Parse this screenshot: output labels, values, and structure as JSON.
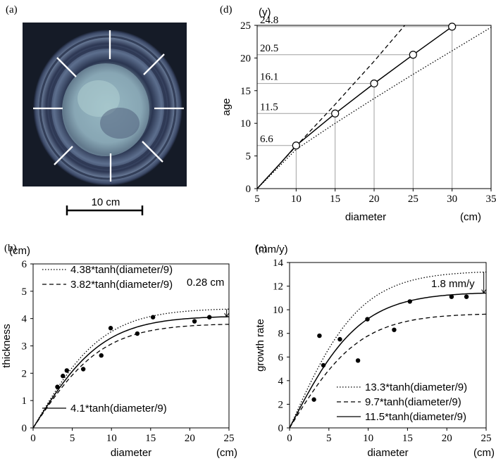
{
  "panels": {
    "a": {
      "label": "(a)",
      "scalebar": "10 cm"
    },
    "b": {
      "label": "(b)"
    },
    "c": {
      "label": "(c)"
    },
    "d": {
      "label": "(d)"
    }
  },
  "colors": {
    "ink": "#000000",
    "grid": "#a0a0a0",
    "disk_dark": "#1b2233",
    "disk_light": "#9fc0c8"
  },
  "chart_data": [
    {
      "id": "b",
      "type": "line",
      "xlabel": "diameter",
      "xunit": "(cm)",
      "ylabel": "thickness",
      "yunit": "(cm)",
      "xlim": [
        0,
        25
      ],
      "ylim": [
        0,
        6
      ],
      "xticks": [
        0,
        5,
        10,
        15,
        20,
        25
      ],
      "yticks": [
        0,
        1,
        2,
        3,
        4,
        5,
        6
      ],
      "curves": [
        {
          "name": "4.38*tanh(diameter/9)",
          "A": 4.38,
          "k": 9,
          "style": "dotted"
        },
        {
          "name": "3.82*tanh(diameter/9)",
          "A": 3.82,
          "k": 9,
          "style": "dashed"
        },
        {
          "name": "4.1*tanh(diameter/9)",
          "A": 4.1,
          "k": 9,
          "style": "solid"
        }
      ],
      "points": [
        [
          3.1,
          1.5
        ],
        [
          3.8,
          1.9
        ],
        [
          4.3,
          2.1
        ],
        [
          6.4,
          2.15
        ],
        [
          8.7,
          2.65
        ],
        [
          9.9,
          3.65
        ],
        [
          13.3,
          3.45
        ],
        [
          15.3,
          4.05
        ],
        [
          20.6,
          3.9
        ],
        [
          22.5,
          4.05
        ]
      ],
      "annotation": "0.28 cm"
    },
    {
      "id": "c",
      "type": "line",
      "xlabel": "diameter",
      "xunit": "(cm)",
      "ylabel": "growth rate",
      "yunit": "(mm/y)",
      "xlim": [
        0,
        25
      ],
      "ylim": [
        0,
        14
      ],
      "xticks": [
        0,
        5,
        10,
        15,
        20,
        25
      ],
      "yticks": [
        0,
        2,
        4,
        6,
        8,
        10,
        12,
        14
      ],
      "curves": [
        {
          "name": "13.3*tanh(diameter/9)",
          "A": 13.3,
          "k": 9,
          "style": "dotted"
        },
        {
          "name": "9.7*tanh(diameter/9)",
          "A": 9.7,
          "k": 9,
          "style": "dashed"
        },
        {
          "name": "11.5*tanh(diameter/9)",
          "A": 11.5,
          "k": 9,
          "style": "solid"
        }
      ],
      "points": [
        [
          3.1,
          2.4
        ],
        [
          3.8,
          7.8
        ],
        [
          4.3,
          5.3
        ],
        [
          6.4,
          7.5
        ],
        [
          8.7,
          5.7
        ],
        [
          9.9,
          9.2
        ],
        [
          13.3,
          8.3
        ],
        [
          15.3,
          10.7
        ],
        [
          20.6,
          11.1
        ],
        [
          22.5,
          11.1
        ]
      ],
      "annotation": "1.8 mm/y"
    },
    {
      "id": "d",
      "type": "line",
      "xlabel": "diameter",
      "xunit": "(cm)",
      "ylabel": "age",
      "yunit": "(y)",
      "xlim": [
        5,
        35
      ],
      "ylim": [
        0,
        25
      ],
      "xticks": [
        5,
        10,
        15,
        20,
        25,
        30,
        35
      ],
      "yticks": [
        0,
        5,
        10,
        15,
        20,
        25
      ],
      "curves": [
        {
          "style": "dashed",
          "x": [
            5,
            6,
            8,
            10,
            15,
            20,
            25,
            28
          ],
          "y": [
            0,
            1.3,
            3.9,
            6.5,
            12.9,
            19.5,
            26.5,
            30.7
          ]
        },
        {
          "style": "solid",
          "x": [
            5,
            6,
            8,
            10,
            15,
            20,
            25,
            30
          ],
          "y": [
            0,
            1.3,
            3.9,
            6.6,
            11.5,
            16.1,
            20.5,
            24.8
          ]
        },
        {
          "style": "dotted",
          "x": [
            5,
            10,
            15,
            20,
            25,
            30,
            35
          ],
          "y": [
            0,
            6.0,
            10.0,
            13.8,
            17.5,
            21.1,
            24.7
          ]
        }
      ],
      "markers": [
        [
          10,
          6.6
        ],
        [
          15,
          11.5
        ],
        [
          20,
          16.1
        ],
        [
          25,
          20.5
        ],
        [
          30,
          24.8
        ]
      ],
      "marker_labels": [
        "6.6",
        "11.5",
        "16.1",
        "20.5",
        "24.8"
      ]
    }
  ]
}
